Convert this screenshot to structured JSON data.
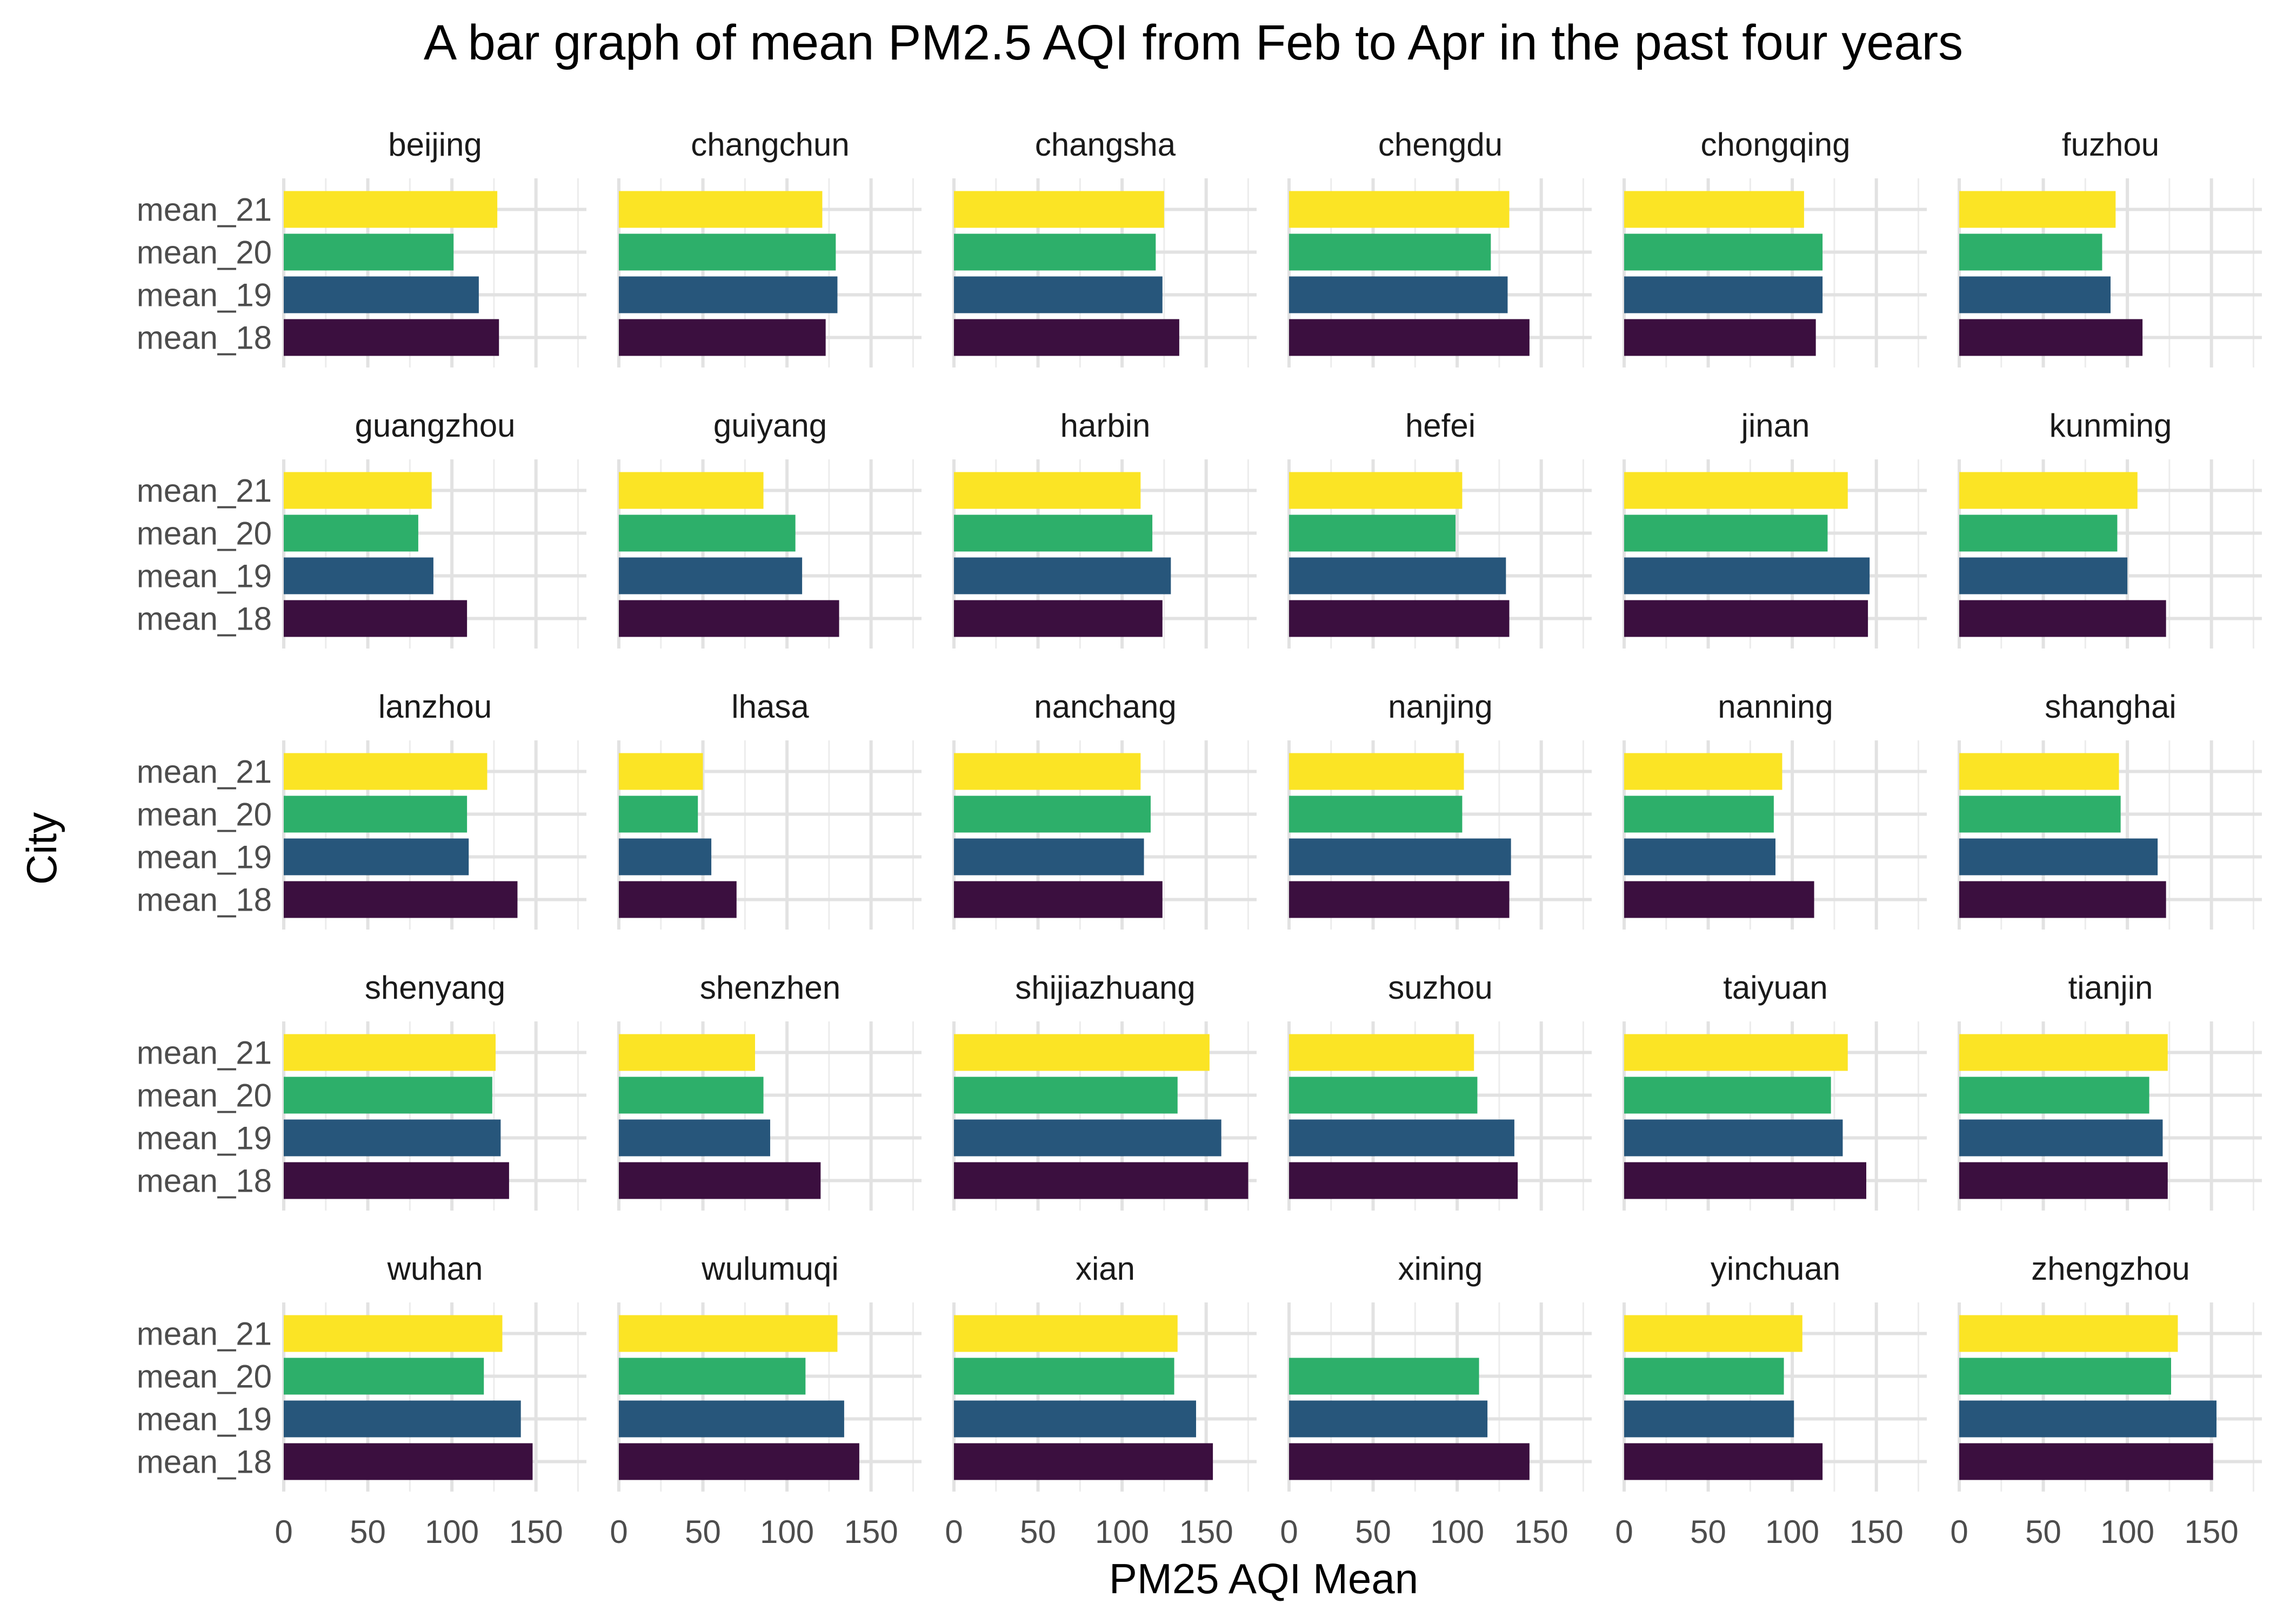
{
  "chart_data": {
    "type": "bar",
    "orientation": "horizontal",
    "title": "A bar graph of mean PM2.5 AQI from Feb to Apr in the past four years",
    "xlabel": "PM25 AQI Mean",
    "ylabel": "City",
    "xlim": [
      0,
      180
    ],
    "xticks": [
      0,
      50,
      100,
      150
    ],
    "grid": true,
    "legend": "none",
    "categories": [
      "mean_18",
      "mean_19",
      "mean_20",
      "mean_21"
    ],
    "colors": {
      "mean_18": "#3B0F3F",
      "mean_19": "#27567B",
      "mean_20": "#2DAF6A",
      "mean_21": "#FBE425"
    },
    "panels": [
      {
        "city": "beijing",
        "values": {
          "mean_18": 128,
          "mean_19": 116,
          "mean_20": 101,
          "mean_21": 127
        }
      },
      {
        "city": "changchun",
        "values": {
          "mean_18": 123,
          "mean_19": 130,
          "mean_20": 129,
          "mean_21": 121
        }
      },
      {
        "city": "changsha",
        "values": {
          "mean_18": 134,
          "mean_19": 124,
          "mean_20": 120,
          "mean_21": 125
        }
      },
      {
        "city": "chengdu",
        "values": {
          "mean_18": 143,
          "mean_19": 130,
          "mean_20": 120,
          "mean_21": 131
        }
      },
      {
        "city": "chongqing",
        "values": {
          "mean_18": 114,
          "mean_19": 118,
          "mean_20": 118,
          "mean_21": 107
        }
      },
      {
        "city": "fuzhou",
        "values": {
          "mean_18": 109,
          "mean_19": 90,
          "mean_20": 85,
          "mean_21": 93
        }
      },
      {
        "city": "guangzhou",
        "values": {
          "mean_18": 109,
          "mean_19": 89,
          "mean_20": 80,
          "mean_21": 88
        }
      },
      {
        "city": "guiyang",
        "values": {
          "mean_18": 131,
          "mean_19": 109,
          "mean_20": 105,
          "mean_21": 86
        }
      },
      {
        "city": "harbin",
        "values": {
          "mean_18": 124,
          "mean_19": 129,
          "mean_20": 118,
          "mean_21": 111
        }
      },
      {
        "city": "hefei",
        "values": {
          "mean_18": 131,
          "mean_19": 129,
          "mean_20": 99,
          "mean_21": 103
        }
      },
      {
        "city": "jinan",
        "values": {
          "mean_18": 145,
          "mean_19": 146,
          "mean_20": 121,
          "mean_21": 133
        }
      },
      {
        "city": "kunming",
        "values": {
          "mean_18": 123,
          "mean_19": 100,
          "mean_20": 94,
          "mean_21": 106
        }
      },
      {
        "city": "lanzhou",
        "values": {
          "mean_18": 139,
          "mean_19": 110,
          "mean_20": 109,
          "mean_21": 121
        }
      },
      {
        "city": "lhasa",
        "values": {
          "mean_18": 70,
          "mean_19": 55,
          "mean_20": 47,
          "mean_21": 50
        }
      },
      {
        "city": "nanchang",
        "values": {
          "mean_18": 124,
          "mean_19": 113,
          "mean_20": 117,
          "mean_21": 111
        }
      },
      {
        "city": "nanjing",
        "values": {
          "mean_18": 131,
          "mean_19": 132,
          "mean_20": 103,
          "mean_21": 104
        }
      },
      {
        "city": "nanning",
        "values": {
          "mean_18": 113,
          "mean_19": 90,
          "mean_20": 89,
          "mean_21": 94
        }
      },
      {
        "city": "shanghai",
        "values": {
          "mean_18": 123,
          "mean_19": 118,
          "mean_20": 96,
          "mean_21": 95
        }
      },
      {
        "city": "shenyang",
        "values": {
          "mean_18": 134,
          "mean_19": 129,
          "mean_20": 124,
          "mean_21": 126
        }
      },
      {
        "city": "shenzhen",
        "values": {
          "mean_18": 120,
          "mean_19": 90,
          "mean_20": 86,
          "mean_21": 81
        }
      },
      {
        "city": "shijiazhuang",
        "values": {
          "mean_18": 175,
          "mean_19": 159,
          "mean_20": 133,
          "mean_21": 152
        }
      },
      {
        "city": "suzhou",
        "values": {
          "mean_18": 136,
          "mean_19": 134,
          "mean_20": 112,
          "mean_21": 110
        }
      },
      {
        "city": "taiyuan",
        "values": {
          "mean_18": 144,
          "mean_19": 130,
          "mean_20": 123,
          "mean_21": 133
        }
      },
      {
        "city": "tianjin",
        "values": {
          "mean_18": 124,
          "mean_19": 121,
          "mean_20": 113,
          "mean_21": 124
        }
      },
      {
        "city": "wuhan",
        "values": {
          "mean_18": 148,
          "mean_19": 141,
          "mean_20": 119,
          "mean_21": 130
        }
      },
      {
        "city": "wulumuqi",
        "values": {
          "mean_18": 143,
          "mean_19": 134,
          "mean_20": 111,
          "mean_21": 130
        }
      },
      {
        "city": "xian",
        "values": {
          "mean_18": 154,
          "mean_19": 144,
          "mean_20": 131,
          "mean_21": 133
        }
      },
      {
        "city": "xining",
        "values": {
          "mean_18": 143,
          "mean_19": 118,
          "mean_20": 113,
          "mean_21": null
        }
      },
      {
        "city": "yinchuan",
        "values": {
          "mean_18": 118,
          "mean_19": 101,
          "mean_20": 95,
          "mean_21": 106
        }
      },
      {
        "city": "zhengzhou",
        "values": {
          "mean_18": 151,
          "mean_19": 153,
          "mean_20": 126,
          "mean_21": 130
        }
      }
    ]
  }
}
